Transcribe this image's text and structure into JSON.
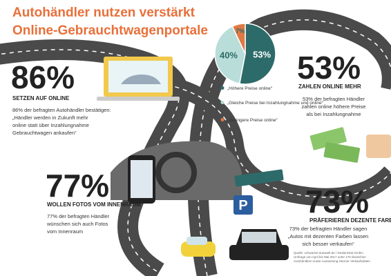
{
  "header": {
    "title": [
      "Autohändler nutzen verstärkt",
      "Online-Gebrauchtwagenportale"
    ]
  },
  "pie": {
    "type": "pie",
    "values": [
      53,
      40,
      7
    ],
    "value_labels": [
      "53%",
      "40%",
      "7%"
    ],
    "colors": [
      "#2d6b6a",
      "#b9ddd8",
      "#e07a45"
    ],
    "legend": [
      "„Höhere Preise online“",
      "„Gleiche Preise bei Inzahlungnahme und online“",
      "„Geringere Preise online“"
    ]
  },
  "sections": [
    {
      "figure": "86%",
      "heading": "SETZEN AUF ONLINE",
      "body": [
        "86% der befragten Autohändler bestätigen:",
        "„Händler werden in Zukunft mehr",
        "online statt über Inzahlungnahme",
        "Gebrauchtwagen ankaufen“"
      ]
    },
    {
      "figure": "53%",
      "heading": "ZAHLEN ONLINE MEHR",
      "body": [
        "53% der befragten Händler",
        "zahlen online höhere Preise",
        "als bei Inzahlungnahme"
      ]
    },
    {
      "figure": "77%",
      "heading": "WOLLEN FOTOS VOM INNENRAUM",
      "body": [
        "77% der befragten Händler",
        "wünschen sich auch Fotos",
        "vom Innenraum"
      ]
    },
    {
      "figure": "73%",
      "heading": "PRÄFERIEREN DEZENTE FARBEN",
      "body": [
        "73% der befragten Händler sagen",
        "„Autos mit dezenten Farben lassen",
        "sich besser verkaufen“"
      ]
    }
  ],
  "source": [
    "Quelle: schwacke-autowelt.de / DealerStrat GmbH,",
    "Umfrage von April bis Mai 2017 unter 170 deutschen",
    "Autohändlern sowie Auswertung interner Verkaufsdaten"
  ]
}
